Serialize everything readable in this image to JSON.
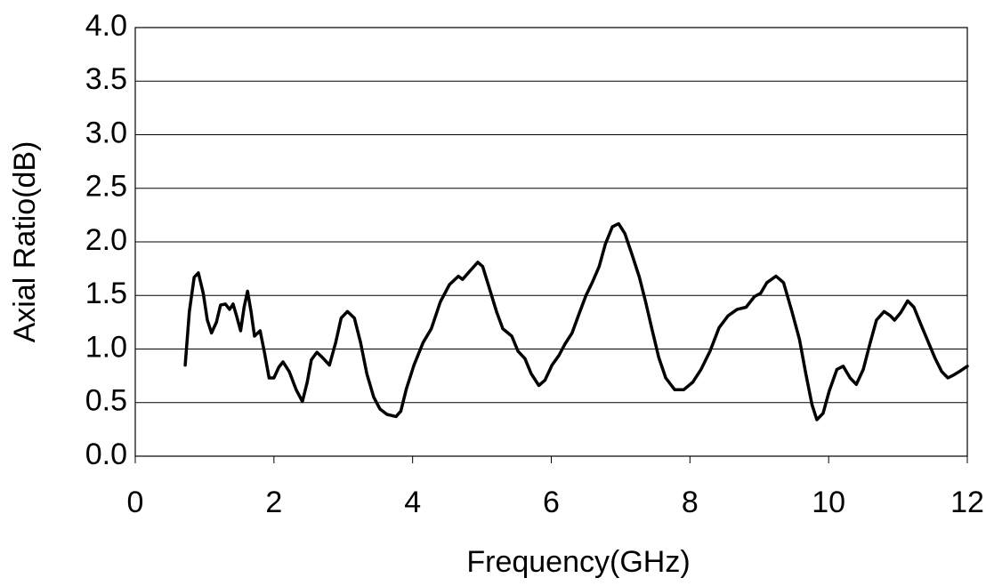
{
  "chart_data": {
    "type": "line",
    "xlabel": "Frequency(GHz)",
    "ylabel": "Axial Ratio(dB)",
    "xlim": [
      0,
      12
    ],
    "xticks": [
      0,
      2,
      4,
      6,
      8,
      10,
      12
    ],
    "ylim": [
      0,
      4
    ],
    "yticks": [
      {
        "value": 0,
        "label": "0.0"
      },
      0.5,
      {
        "value": 1,
        "label": "1.0"
      },
      1.5,
      {
        "value": 2,
        "label": "2.0"
      },
      2.5,
      {
        "value": 3,
        "label": "3.0"
      },
      3.5,
      {
        "value": 4,
        "label": "4.0"
      }
    ],
    "grid": true,
    "color": "#000000",
    "x": [
      0.72,
      0.78,
      0.85,
      0.91,
      0.98,
      1.04,
      1.1,
      1.17,
      1.23,
      1.3,
      1.36,
      1.41,
      1.46,
      1.52,
      1.57,
      1.62,
      1.67,
      1.72,
      1.8,
      1.86,
      1.93,
      2.0,
      2.07,
      2.13,
      2.22,
      2.32,
      2.41,
      2.48,
      2.54,
      2.62,
      2.7,
      2.8,
      2.89,
      2.97,
      3.06,
      3.16,
      3.25,
      3.34,
      3.44,
      3.53,
      3.63,
      3.76,
      3.83,
      3.91,
      4.02,
      4.15,
      4.27,
      4.4,
      4.53,
      4.66,
      4.72,
      4.83,
      4.94,
      5.01,
      5.11,
      5.21,
      5.3,
      5.43,
      5.52,
      5.62,
      5.71,
      5.82,
      5.91,
      6.01,
      6.11,
      6.2,
      6.3,
      6.39,
      6.5,
      6.59,
      6.69,
      6.78,
      6.88,
      6.97,
      7.06,
      7.16,
      7.27,
      7.36,
      7.45,
      7.55,
      7.65,
      7.78,
      7.91,
      8.04,
      8.16,
      8.29,
      8.42,
      8.55,
      8.68,
      8.81,
      8.93,
      9.02,
      9.11,
      9.24,
      9.35,
      9.47,
      9.58,
      9.67,
      9.76,
      9.83,
      9.92,
      10.01,
      10.12,
      10.21,
      10.31,
      10.4,
      10.5,
      10.6,
      10.69,
      10.8,
      10.89,
      10.95,
      11.04,
      11.14,
      11.23,
      11.33,
      11.44,
      11.53,
      11.63,
      11.72,
      11.81,
      11.91,
      12.0
    ],
    "values": [
      0.85,
      1.35,
      1.67,
      1.71,
      1.52,
      1.27,
      1.15,
      1.25,
      1.41,
      1.42,
      1.37,
      1.42,
      1.31,
      1.17,
      1.39,
      1.54,
      1.35,
      1.12,
      1.17,
      0.98,
      0.73,
      0.73,
      0.83,
      0.88,
      0.79,
      0.62,
      0.51,
      0.69,
      0.9,
      0.97,
      0.92,
      0.85,
      1.06,
      1.29,
      1.35,
      1.29,
      1.06,
      0.77,
      0.55,
      0.44,
      0.39,
      0.37,
      0.42,
      0.63,
      0.85,
      1.06,
      1.19,
      1.44,
      1.6,
      1.68,
      1.65,
      1.73,
      1.81,
      1.77,
      1.56,
      1.35,
      1.19,
      1.12,
      0.98,
      0.91,
      0.77,
      0.66,
      0.71,
      0.85,
      0.94,
      1.05,
      1.15,
      1.31,
      1.5,
      1.62,
      1.77,
      1.98,
      2.14,
      2.17,
      2.08,
      1.89,
      1.67,
      1.44,
      1.19,
      0.92,
      0.73,
      0.62,
      0.62,
      0.69,
      0.81,
      0.98,
      1.2,
      1.31,
      1.37,
      1.39,
      1.49,
      1.52,
      1.62,
      1.68,
      1.62,
      1.35,
      1.09,
      0.77,
      0.48,
      0.34,
      0.4,
      0.61,
      0.81,
      0.84,
      0.73,
      0.67,
      0.81,
      1.06,
      1.27,
      1.35,
      1.31,
      1.27,
      1.34,
      1.45,
      1.39,
      1.23,
      1.06,
      0.92,
      0.79,
      0.73,
      0.76,
      0.8,
      0.84
    ]
  }
}
